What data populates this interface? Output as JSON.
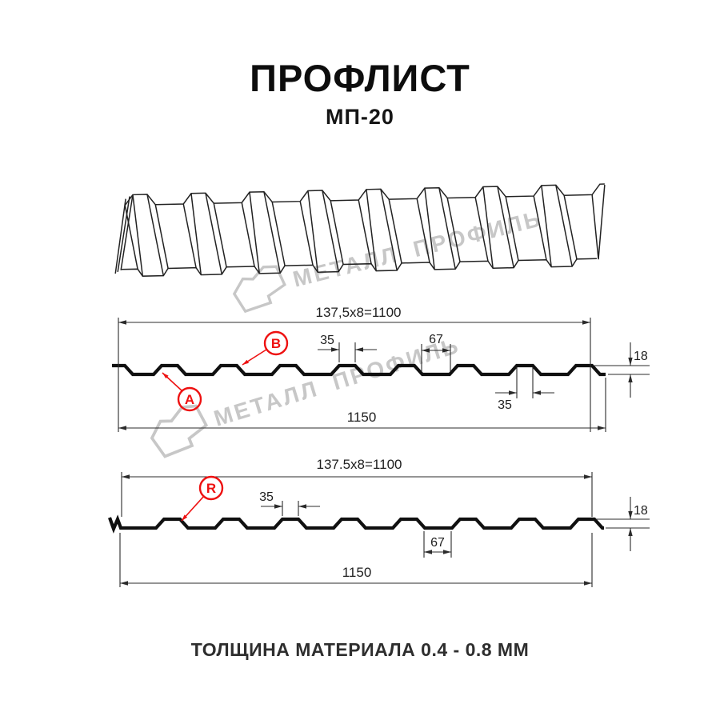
{
  "page": {
    "title": "ПРОФЛИСТ",
    "subtitle": "МП-20",
    "footer": "ТОЛЩИНА МАТЕРИАЛА 0.4 - 0.8 ММ"
  },
  "watermark": {
    "brand": "МЕТАЛЛ ПРОФИЛЬ"
  },
  "colors": {
    "accent_red": "#ee1111",
    "profile_line": "#101010",
    "dim_line": "#2b2b2b",
    "watermark_gray": "#c7c7c7"
  },
  "section_a": {
    "pitch_formula": "137,5x8=1100",
    "rib_top_width": "35",
    "valley_width": "67",
    "profile_height": "18",
    "rib_bottom_width": "35",
    "total_width": "1150",
    "side_label_a": "A",
    "side_label_b": "B"
  },
  "section_r": {
    "pitch_formula": "137.5x8=1100",
    "rib_top_width": "35",
    "valley_width": "67",
    "profile_height": "18",
    "total_width": "1150",
    "side_label_r": "R"
  }
}
